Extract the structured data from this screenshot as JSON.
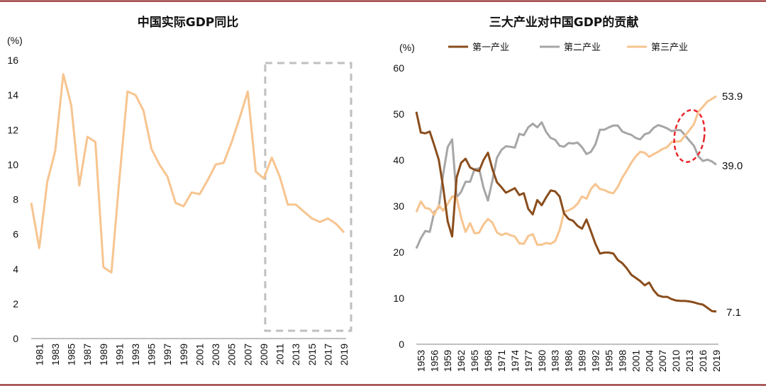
{
  "colors": {
    "border": "#8b1a1a",
    "primary": "#8a4d1c",
    "secondary": "#a6a6a6",
    "tertiary": "#f7c48f",
    "gdp_line": "#f7c48f",
    "box": "#bfbfbf",
    "ellipse": "#e8262b",
    "axis": "#808080"
  },
  "chart_data": [
    {
      "type": "line",
      "title": "中国实际GDP同比",
      "ylabel": "(%)",
      "ylim": [
        0,
        16
      ],
      "yticks": [
        0,
        2,
        4,
        6,
        8,
        10,
        12,
        14,
        16
      ],
      "x": [
        1980,
        1981,
        1982,
        1983,
        1984,
        1985,
        1986,
        1987,
        1988,
        1989,
        1990,
        1991,
        1992,
        1993,
        1994,
        1995,
        1996,
        1997,
        1998,
        1999,
        2000,
        2001,
        2002,
        2003,
        2004,
        2005,
        2006,
        2007,
        2008,
        2009,
        2010,
        2011,
        2012,
        2013,
        2014,
        2015,
        2016,
        2017,
        2018,
        2019
      ],
      "xlim": [
        1980,
        2019
      ],
      "xticks": [
        1981,
        1983,
        1985,
        1987,
        1989,
        1991,
        1993,
        1995,
        1997,
        1999,
        2001,
        2003,
        2005,
        2007,
        2009,
        2011,
        2013,
        2015,
        2017,
        2019
      ],
      "series": [
        {
          "name": "中国实际GDP同比",
          "values": [
            7.8,
            5.2,
            9.0,
            10.8,
            15.2,
            13.4,
            8.8,
            11.6,
            11.3,
            4.1,
            3.8,
            9.2,
            14.2,
            14.0,
            13.1,
            10.9,
            10.0,
            9.3,
            7.8,
            7.6,
            8.4,
            8.3,
            9.1,
            10.0,
            10.1,
            11.3,
            12.7,
            14.2,
            9.6,
            9.2,
            10.4,
            9.3,
            7.7,
            7.7,
            7.3,
            6.9,
            6.7,
            6.9,
            6.6,
            6.1
          ]
        }
      ],
      "annotations": [
        "dashed-box-2009-2019"
      ]
    },
    {
      "type": "line",
      "title": "三大产业对中国GDP的贡献",
      "ylabel": "(%)",
      "ylim": [
        0,
        60
      ],
      "yticks": [
        0,
        10,
        20,
        30,
        40,
        50,
        60
      ],
      "x": [
        1952,
        1953,
        1954,
        1955,
        1956,
        1957,
        1958,
        1959,
        1960,
        1961,
        1962,
        1963,
        1964,
        1965,
        1966,
        1967,
        1968,
        1969,
        1970,
        1971,
        1972,
        1973,
        1974,
        1975,
        1976,
        1977,
        1978,
        1979,
        1980,
        1981,
        1982,
        1983,
        1984,
        1985,
        1986,
        1987,
        1988,
        1989,
        1990,
        1991,
        1992,
        1993,
        1994,
        1995,
        1996,
        1997,
        1998,
        1999,
        2000,
        2001,
        2002,
        2003,
        2004,
        2005,
        2006,
        2007,
        2008,
        2009,
        2010,
        2011,
        2012,
        2013,
        2014,
        2015,
        2016,
        2017,
        2018,
        2019
      ],
      "xlim": [
        1952,
        2019
      ],
      "xticks": [
        1953,
        1956,
        1959,
        1962,
        1965,
        1968,
        1971,
        1974,
        1977,
        1980,
        1983,
        1986,
        1989,
        1992,
        1995,
        1998,
        2001,
        2004,
        2007,
        2010,
        2013,
        2016,
        2019
      ],
      "legend": [
        "第一产业",
        "第二产业",
        "第三产业"
      ],
      "end_labels": [
        "53.9",
        "39.0",
        "7.1"
      ],
      "series": [
        {
          "name": "第一产业",
          "values": [
            50.5,
            46.0,
            45.8,
            46.2,
            43.2,
            40.1,
            34.0,
            26.7,
            23.4,
            36.2,
            39.4,
            40.3,
            38.4,
            37.9,
            37.6,
            40.0,
            41.6,
            38.0,
            35.2,
            34.1,
            32.9,
            33.4,
            33.9,
            32.4,
            32.8,
            29.4,
            28.2,
            31.3,
            30.2,
            31.9,
            33.4,
            33.2,
            32.1,
            28.4,
            27.2,
            26.8,
            25.7,
            25.1,
            27.1,
            24.5,
            21.8,
            19.7,
            19.9,
            19.9,
            19.7,
            18.3,
            17.6,
            16.5,
            15.1,
            14.4,
            13.7,
            12.8,
            13.4,
            11.7,
            10.6,
            10.3,
            10.3,
            9.8,
            9.5,
            9.4,
            9.4,
            9.3,
            9.1,
            8.8,
            8.6,
            7.9,
            7.2,
            7.1
          ]
        },
        {
          "name": "第二产业",
          "values": [
            20.8,
            23.0,
            24.6,
            24.4,
            28.7,
            29.7,
            37.0,
            42.8,
            44.5,
            31.9,
            33.1,
            35.3,
            35.3,
            38.0,
            38.2,
            34.0,
            31.2,
            35.6,
            40.5,
            42.2,
            43.0,
            42.9,
            42.7,
            45.7,
            45.4,
            47.1,
            47.9,
            47.1,
            48.2,
            46.1,
            44.8,
            44.4,
            43.1,
            42.9,
            43.7,
            43.6,
            43.8,
            42.8,
            41.3,
            41.8,
            43.4,
            46.6,
            46.6,
            47.1,
            47.5,
            47.5,
            46.2,
            45.8,
            45.5,
            44.8,
            44.5,
            45.6,
            45.9,
            47.0,
            47.6,
            47.3,
            46.9,
            46.3,
            46.5,
            46.5,
            45.4,
            44.2,
            43.1,
            40.8,
            39.8,
            40.1,
            39.7,
            39.0
          ]
        },
        {
          "name": "第三产业",
          "values": [
            28.7,
            31.0,
            29.6,
            29.4,
            28.1,
            30.2,
            29.0,
            30.5,
            32.1,
            31.9,
            27.5,
            24.4,
            26.3,
            24.1,
            24.2,
            26.0,
            27.2,
            26.4,
            24.3,
            23.7,
            24.1,
            23.7,
            23.4,
            21.9,
            21.8,
            23.5,
            23.9,
            21.6,
            21.6,
            22.0,
            21.8,
            22.4,
            24.8,
            28.7,
            29.1,
            29.6,
            30.5,
            32.1,
            31.6,
            33.7,
            34.8,
            33.7,
            33.5,
            33.0,
            32.8,
            34.2,
            36.2,
            37.7,
            39.4,
            40.8,
            41.8,
            41.6,
            40.7,
            41.3,
            41.8,
            42.4,
            42.8,
            43.9,
            44.0,
            44.1,
            45.3,
            46.5,
            47.8,
            50.5,
            51.6,
            52.7,
            53.3,
            53.9
          ]
        }
      ],
      "annotations": [
        "red-dashed-ellipse-2010-2015"
      ]
    }
  ]
}
